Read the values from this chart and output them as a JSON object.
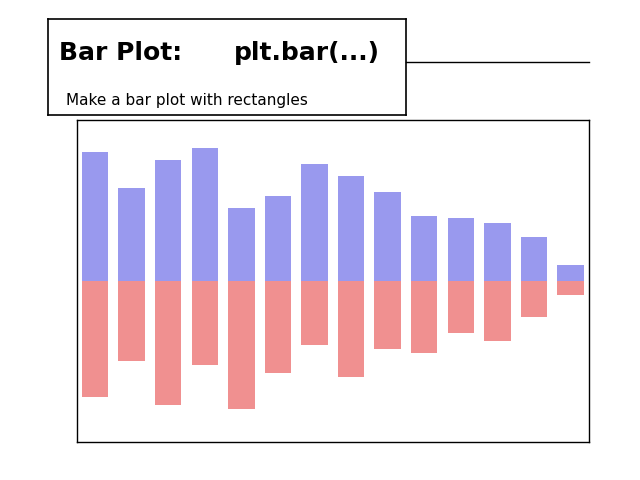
{
  "title_line1": "Bar Plot:",
  "title_line2": "plt.bar(...)",
  "subtitle": "Make a bar plot with rectangles",
  "n_bars": 14,
  "blue_color": "#9999ee",
  "red_color": "#f09090",
  "background": "#ffffff",
  "blue_values": [
    3.2,
    2.3,
    3.0,
    3.3,
    1.8,
    2.1,
    2.9,
    2.6,
    2.2,
    1.6,
    1.55,
    1.45,
    1.1,
    0.4
  ],
  "red_values": [
    -2.9,
    -2.0,
    -3.1,
    -2.1,
    -3.2,
    -2.3,
    -1.6,
    -2.4,
    -1.7,
    -1.8,
    -1.3,
    -1.5,
    -0.9,
    -0.35
  ],
  "ylim": [
    -4.0,
    4.0
  ],
  "xlim": [
    -0.5,
    13.5
  ]
}
